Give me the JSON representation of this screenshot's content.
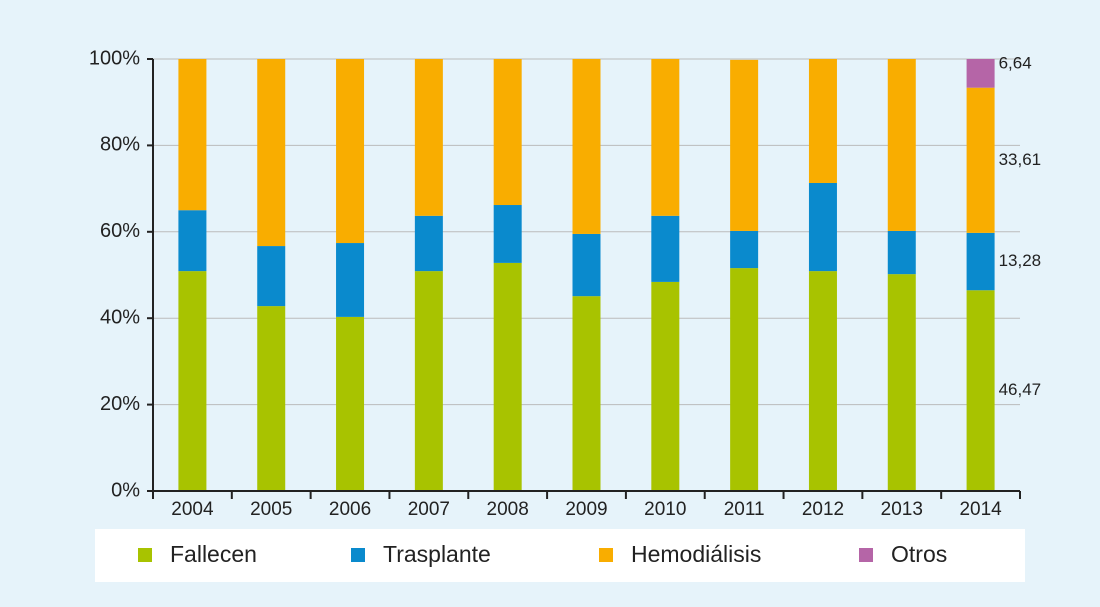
{
  "chart_data": {
    "type": "bar",
    "stacked": true,
    "categories": [
      "2004",
      "2005",
      "2006",
      "2007",
      "2008",
      "2009",
      "2010",
      "2011",
      "2012",
      "2013",
      "2014"
    ],
    "series": [
      {
        "name": "Fallecen",
        "color": "#a8c300",
        "values": [
          50.9,
          42.8,
          40.3,
          50.9,
          52.8,
          45.1,
          48.4,
          51.6,
          50.9,
          50.2,
          46.47
        ],
        "value_labels": [
          null,
          null,
          null,
          null,
          null,
          null,
          null,
          null,
          null,
          null,
          "46,47"
        ]
      },
      {
        "name": "Trasplante",
        "color": "#0a8acd",
        "values": [
          14.1,
          13.9,
          17.1,
          12.8,
          13.4,
          14.4,
          15.3,
          8.6,
          20.4,
          10.0,
          13.28
        ],
        "value_labels": [
          null,
          null,
          null,
          null,
          null,
          null,
          null,
          null,
          null,
          null,
          "13,28"
        ]
      },
      {
        "name": "Hemodiálisis",
        "color": "#f9ad00",
        "values": [
          35.0,
          43.3,
          42.6,
          36.3,
          33.8,
          40.5,
          36.3,
          39.6,
          28.7,
          39.8,
          33.61
        ],
        "value_labels": [
          null,
          null,
          null,
          null,
          null,
          null,
          null,
          null,
          null,
          null,
          "33,61"
        ]
      },
      {
        "name": "Otros",
        "color": "#b565a7",
        "values": [
          null,
          null,
          null,
          null,
          null,
          null,
          null,
          null,
          null,
          null,
          6.64
        ],
        "value_labels": [
          null,
          null,
          null,
          null,
          null,
          null,
          null,
          null,
          null,
          null,
          "6,64"
        ]
      }
    ],
    "ylim": [
      0,
      100
    ],
    "yticks": [
      {
        "value": 0,
        "label": "0%"
      },
      {
        "value": 20,
        "label": "20%"
      },
      {
        "value": 40,
        "label": "40%"
      },
      {
        "value": 60,
        "label": "60%"
      },
      {
        "value": 80,
        "label": "80%"
      },
      {
        "value": 100,
        "label": "100%"
      }
    ],
    "grid": true,
    "legend": "bottom"
  }
}
